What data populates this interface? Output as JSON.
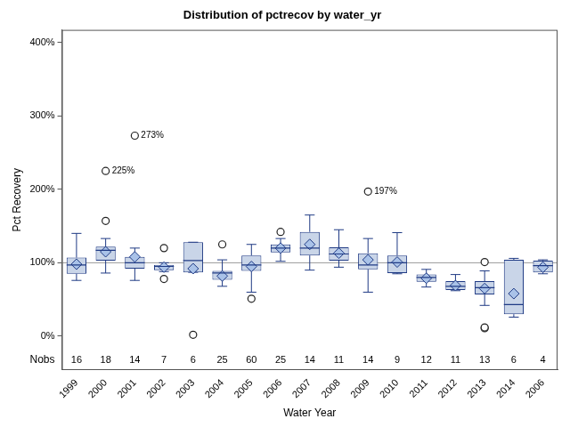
{
  "chart_data": {
    "type": "boxplot",
    "title": "Distribution of pctrecov by water_yr",
    "x_label": "Water Year",
    "y_label": "Pct Recovery",
    "n_label": "Nobs",
    "categories": [
      "1999",
      "2000",
      "2001",
      "2002",
      "2003",
      "2004",
      "2005",
      "2006",
      "2007",
      "2008",
      "2009",
      "2010",
      "2011",
      "2012",
      "2013",
      "2014",
      "2006"
    ],
    "boxes": [
      {
        "min": 76,
        "q1": 85,
        "median": 97,
        "q3": 107,
        "max": 140,
        "mean": 98,
        "outliers": [],
        "n": 16
      },
      {
        "min": 86,
        "q1": 103,
        "median": 117,
        "q3": 122,
        "max": 133,
        "mean": 115,
        "outliers": [
          157,
          225
        ],
        "n": 18,
        "outlier_labels": [
          {
            "value": 225,
            "label": "225%"
          }
        ]
      },
      {
        "min": 76,
        "q1": 92,
        "median": 100,
        "q3": 108,
        "max": 120,
        "mean": 108,
        "outliers": [
          273
        ],
        "n": 14,
        "outlier_labels": [
          {
            "value": 273,
            "label": "273%"
          }
        ]
      },
      {
        "min": 88,
        "q1": 90,
        "median": 95,
        "q3": 97,
        "max": 100,
        "mean": 94,
        "outliers": [
          120,
          78
        ],
        "n": 7
      },
      {
        "min": 87,
        "q1": 87,
        "median": 103,
        "q3": 128,
        "max": 128,
        "mean": 92,
        "outliers": [
          2
        ],
        "n": 6
      },
      {
        "min": 68,
        "q1": 77,
        "median": 86,
        "q3": 89,
        "max": 104,
        "mean": 82,
        "outliers": [
          125
        ],
        "n": 25
      },
      {
        "min": 60,
        "q1": 89,
        "median": 97,
        "q3": 110,
        "max": 125,
        "mean": 95,
        "outliers": [
          51
        ],
        "n": 60
      },
      {
        "min": 102,
        "q1": 114,
        "median": 120,
        "q3": 125,
        "max": 133,
        "mean": 120,
        "outliers": [
          142
        ],
        "n": 25
      },
      {
        "min": 90,
        "q1": 110,
        "median": 120,
        "q3": 142,
        "max": 165,
        "mean": 125,
        "outliers": [],
        "n": 14
      },
      {
        "min": 94,
        "q1": 103,
        "median": 112,
        "q3": 121,
        "max": 145,
        "mean": 113,
        "outliers": [],
        "n": 11
      },
      {
        "min": 60,
        "q1": 91,
        "median": 97,
        "q3": 113,
        "max": 133,
        "mean": 104,
        "outliers": [
          197
        ],
        "n": 14,
        "outlier_labels": [
          {
            "value": 197,
            "label": "197%"
          }
        ]
      },
      {
        "min": 85,
        "q1": 86,
        "median": 100,
        "q3": 110,
        "max": 141,
        "mean": 101,
        "outliers": [],
        "n": 9
      },
      {
        "min": 67,
        "q1": 74,
        "median": 80,
        "q3": 84,
        "max": 91,
        "mean": 79,
        "outliers": [],
        "n": 12
      },
      {
        "min": 62,
        "q1": 63,
        "median": 68,
        "q3": 75,
        "max": 84,
        "mean": 69,
        "outliers": [],
        "n": 11
      },
      {
        "min": 42,
        "q1": 57,
        "median": 66,
        "q3": 75,
        "max": 89,
        "mean": 65,
        "outliers": [
          101,
          12,
          11
        ],
        "n": 13
      },
      {
        "min": 26,
        "q1": 30,
        "median": 43,
        "q3": 104,
        "max": 106,
        "mean": 58,
        "outliers": [],
        "n": 6
      },
      {
        "min": 85,
        "q1": 87,
        "median": 96,
        "q3": 103,
        "max": 104,
        "mean": 94,
        "outliers": [],
        "n": 4
      }
    ],
    "reference_line": 100,
    "color": "#c9d5e8",
    "ylim": [
      -46,
      417
    ],
    "yticks": [
      {
        "value": 0,
        "label": "0%"
      },
      {
        "value": 100,
        "label": "100%"
      },
      {
        "value": 200,
        "label": "200%"
      },
      {
        "value": 300,
        "label": "300%"
      },
      {
        "value": 400,
        "label": "400%"
      }
    ],
    "grid": false
  }
}
